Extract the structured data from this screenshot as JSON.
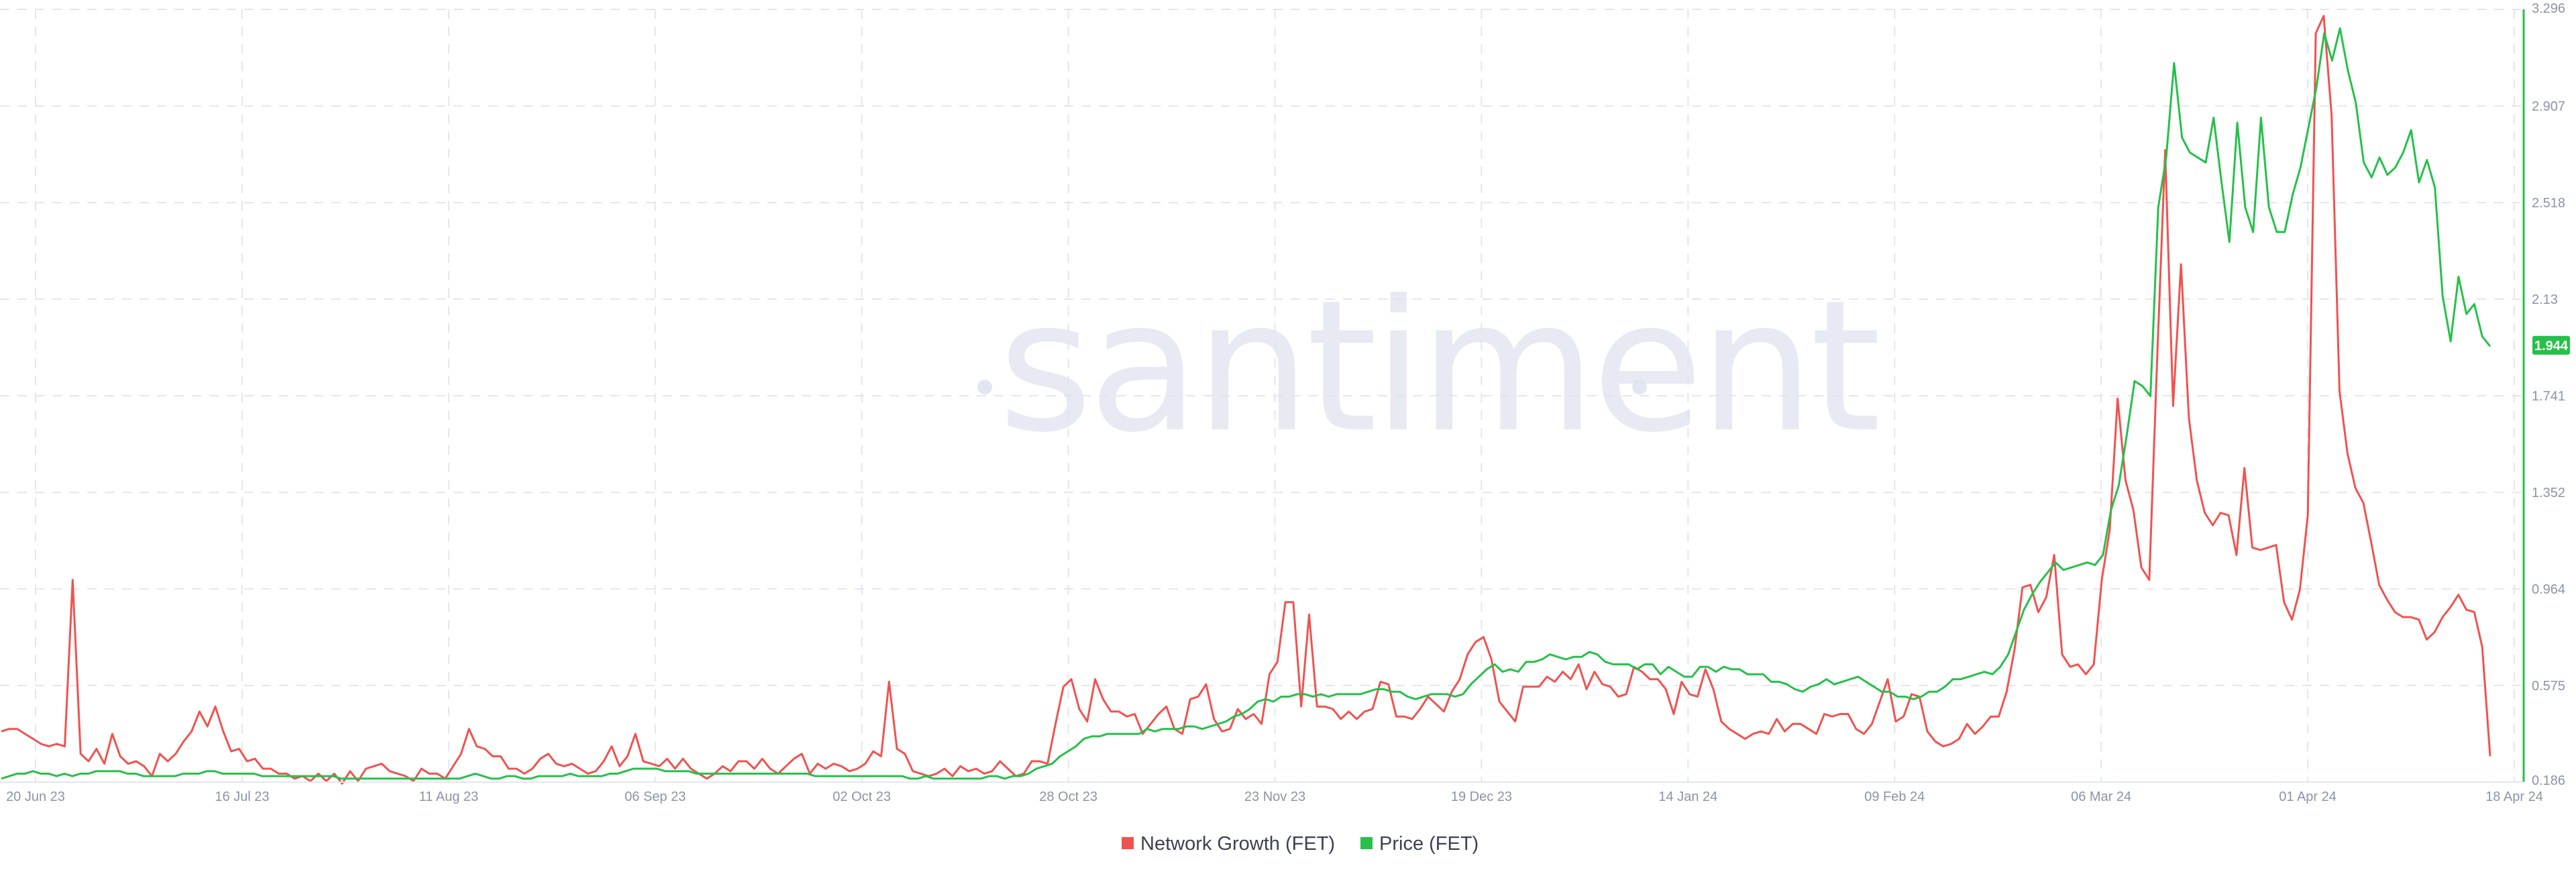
{
  "colors": {
    "network_growth": "#ef5350",
    "price": "#26c04a",
    "grid": "#e3e6ee",
    "tick": "#8b93a7",
    "watermark": "#dfe3ef"
  },
  "watermark": "santiment",
  "legend": {
    "network_growth": "Network Growth (FET)",
    "price": "Price (FET)"
  },
  "chart_data": {
    "type": "line",
    "x_tick_labels": [
      "20 Jun 23",
      "16 Jul 23",
      "11 Aug 23",
      "06 Sep 23",
      "02 Oct 23",
      "28 Oct 23",
      "23 Nov 23",
      "19 Dec 23",
      "14 Jan 24",
      "09 Feb 24",
      "06 Mar 24",
      "01 Apr 24",
      "18 Apr 24"
    ],
    "y_tick_labels": [
      "0.186",
      "0.575",
      "0.964",
      "1.352",
      "1.741",
      "2.13",
      "2.518",
      "2.907",
      "3.296"
    ],
    "ylim": [
      0.186,
      3.296
    ],
    "price_axis_side": "right",
    "current_price_label": "1.944",
    "grid": true,
    "legend_position": "bottom-center",
    "series": [
      {
        "name": "Network Growth (FET)",
        "color": "#ef5350",
        "y_axis": "hidden",
        "values": [
          0.39,
          0.4,
          0.4,
          0.38,
          0.36,
          0.34,
          0.33,
          0.34,
          0.33,
          1.0,
          0.3,
          0.27,
          0.32,
          0.26,
          0.38,
          0.29,
          0.26,
          0.27,
          0.25,
          0.21,
          0.3,
          0.27,
          0.3,
          0.35,
          0.39,
          0.47,
          0.41,
          0.49,
          0.39,
          0.31,
          0.32,
          0.27,
          0.28,
          0.24,
          0.24,
          0.22,
          0.22,
          0.2,
          0.21,
          0.19,
          0.22,
          0.19,
          0.22,
          0.18,
          0.23,
          0.19,
          0.24,
          0.25,
          0.26,
          0.23,
          0.22,
          0.21,
          0.19,
          0.24,
          0.22,
          0.22,
          0.2,
          0.25,
          0.3,
          0.4,
          0.33,
          0.32,
          0.29,
          0.29,
          0.24,
          0.24,
          0.22,
          0.24,
          0.28,
          0.3,
          0.26,
          0.25,
          0.26,
          0.24,
          0.22,
          0.23,
          0.27,
          0.33,
          0.25,
          0.29,
          0.38,
          0.27,
          0.26,
          0.25,
          0.28,
          0.24,
          0.28,
          0.24,
          0.22,
          0.2,
          0.22,
          0.25,
          0.23,
          0.27,
          0.27,
          0.24,
          0.28,
          0.24,
          0.22,
          0.25,
          0.28,
          0.3,
          0.22,
          0.26,
          0.24,
          0.26,
          0.25,
          0.23,
          0.24,
          0.26,
          0.31,
          0.29,
          0.59,
          0.32,
          0.3,
          0.23,
          0.22,
          0.21,
          0.22,
          0.24,
          0.21,
          0.25,
          0.23,
          0.24,
          0.22,
          0.23,
          0.27,
          0.24,
          0.21,
          0.22,
          0.27,
          0.27,
          0.26,
          0.42,
          0.57,
          0.6,
          0.48,
          0.43,
          0.6,
          0.52,
          0.47,
          0.47,
          0.45,
          0.46,
          0.38,
          0.42,
          0.46,
          0.49,
          0.4,
          0.38,
          0.52,
          0.53,
          0.58,
          0.44,
          0.39,
          0.4,
          0.48,
          0.44,
          0.46,
          0.42,
          0.62,
          0.67,
          0.91,
          0.91,
          0.49,
          0.86,
          0.49,
          0.49,
          0.48,
          0.44,
          0.47,
          0.44,
          0.47,
          0.48,
          0.59,
          0.58,
          0.45,
          0.45,
          0.44,
          0.48,
          0.53,
          0.5,
          0.47,
          0.55,
          0.6,
          0.7,
          0.75,
          0.77,
          0.68,
          0.51,
          0.47,
          0.43,
          0.57,
          0.57,
          0.57,
          0.61,
          0.59,
          0.63,
          0.6,
          0.66,
          0.56,
          0.63,
          0.58,
          0.57,
          0.53,
          0.54,
          0.65,
          0.63,
          0.6,
          0.6,
          0.56,
          0.46,
          0.59,
          0.54,
          0.53,
          0.64,
          0.56,
          0.43,
          0.4,
          0.38,
          0.36,
          0.38,
          0.39,
          0.38,
          0.44,
          0.39,
          0.42,
          0.42,
          0.4,
          0.38,
          0.46,
          0.45,
          0.46,
          0.46,
          0.4,
          0.38,
          0.42,
          0.51,
          0.6,
          0.43,
          0.45,
          0.54,
          0.53,
          0.39,
          0.35,
          0.33,
          0.34,
          0.36,
          0.42,
          0.38,
          0.41,
          0.45,
          0.45,
          0.55,
          0.72,
          0.97,
          0.98,
          0.87,
          0.93,
          1.1,
          0.7,
          0.65,
          0.66,
          0.62,
          0.66,
          1.0,
          1.2,
          1.73,
          1.4,
          1.28,
          1.05,
          1.0,
          1.9,
          2.73,
          1.7,
          2.27,
          1.65,
          1.4,
          1.27,
          1.22,
          1.27,
          1.26,
          1.1,
          1.45,
          1.13,
          1.12,
          1.13,
          1.14,
          0.91,
          0.84,
          0.96,
          1.26,
          3.2,
          3.27,
          2.87,
          1.76,
          1.51,
          1.37,
          1.31,
          1.15,
          0.98,
          0.92,
          0.87,
          0.85,
          0.85,
          0.84,
          0.76,
          0.79,
          0.85,
          0.89,
          0.94,
          0.88,
          0.87,
          0.73,
          0.29
        ]
      },
      {
        "name": "Price (FET)",
        "color": "#26c04a",
        "y_axis": "right",
        "values": [
          0.2,
          0.21,
          0.22,
          0.22,
          0.23,
          0.22,
          0.22,
          0.21,
          0.22,
          0.21,
          0.22,
          0.22,
          0.23,
          0.23,
          0.23,
          0.23,
          0.22,
          0.22,
          0.21,
          0.21,
          0.21,
          0.21,
          0.21,
          0.22,
          0.22,
          0.22,
          0.23,
          0.23,
          0.22,
          0.22,
          0.22,
          0.22,
          0.22,
          0.21,
          0.21,
          0.21,
          0.21,
          0.21,
          0.21,
          0.21,
          0.21,
          0.21,
          0.21,
          0.2,
          0.2,
          0.2,
          0.2,
          0.2,
          0.2,
          0.2,
          0.2,
          0.2,
          0.2,
          0.2,
          0.2,
          0.2,
          0.2,
          0.2,
          0.2,
          0.21,
          0.22,
          0.21,
          0.2,
          0.2,
          0.21,
          0.21,
          0.2,
          0.2,
          0.21,
          0.21,
          0.21,
          0.21,
          0.22,
          0.21,
          0.21,
          0.21,
          0.21,
          0.22,
          0.22,
          0.23,
          0.24,
          0.24,
          0.24,
          0.24,
          0.23,
          0.23,
          0.23,
          0.23,
          0.22,
          0.22,
          0.22,
          0.22,
          0.22,
          0.22,
          0.22,
          0.22,
          0.22,
          0.22,
          0.22,
          0.22,
          0.22,
          0.22,
          0.22,
          0.21,
          0.21,
          0.21,
          0.21,
          0.21,
          0.21,
          0.21,
          0.21,
          0.21,
          0.21,
          0.21,
          0.21,
          0.2,
          0.2,
          0.21,
          0.2,
          0.2,
          0.2,
          0.2,
          0.2,
          0.2,
          0.2,
          0.21,
          0.21,
          0.2,
          0.21,
          0.21,
          0.22,
          0.24,
          0.25,
          0.26,
          0.29,
          0.31,
          0.33,
          0.36,
          0.37,
          0.37,
          0.38,
          0.38,
          0.38,
          0.38,
          0.38,
          0.4,
          0.39,
          0.4,
          0.4,
          0.4,
          0.41,
          0.41,
          0.4,
          0.41,
          0.42,
          0.43,
          0.45,
          0.46,
          0.48,
          0.51,
          0.52,
          0.51,
          0.53,
          0.53,
          0.54,
          0.54,
          0.53,
          0.54,
          0.53,
          0.54,
          0.54,
          0.54,
          0.54,
          0.55,
          0.56,
          0.56,
          0.55,
          0.55,
          0.53,
          0.52,
          0.53,
          0.54,
          0.54,
          0.54,
          0.53,
          0.54,
          0.58,
          0.61,
          0.64,
          0.66,
          0.63,
          0.64,
          0.63,
          0.67,
          0.67,
          0.68,
          0.7,
          0.69,
          0.68,
          0.69,
          0.69,
          0.71,
          0.7,
          0.67,
          0.66,
          0.66,
          0.66,
          0.64,
          0.66,
          0.66,
          0.62,
          0.65,
          0.63,
          0.61,
          0.61,
          0.65,
          0.65,
          0.63,
          0.65,
          0.64,
          0.64,
          0.62,
          0.62,
          0.62,
          0.59,
          0.59,
          0.58,
          0.56,
          0.55,
          0.57,
          0.58,
          0.6,
          0.58,
          0.59,
          0.6,
          0.61,
          0.59,
          0.57,
          0.55,
          0.55,
          0.53,
          0.53,
          0.52,
          0.53,
          0.55,
          0.55,
          0.57,
          0.6,
          0.6,
          0.61,
          0.62,
          0.63,
          0.62,
          0.65,
          0.7,
          0.79,
          0.88,
          0.94,
          0.99,
          1.03,
          1.07,
          1.04,
          1.05,
          1.06,
          1.07,
          1.06,
          1.1,
          1.28,
          1.38,
          1.58,
          1.8,
          1.78,
          1.74,
          2.5,
          2.7,
          3.08,
          2.78,
          2.72,
          2.7,
          2.68,
          2.86,
          2.6,
          2.36,
          2.84,
          2.5,
          2.4,
          2.86,
          2.5,
          2.4,
          2.4,
          2.55,
          2.66,
          2.82,
          2.98,
          3.2,
          3.09,
          3.22,
          3.05,
          2.92,
          2.68,
          2.62,
          2.7,
          2.63,
          2.66,
          2.72,
          2.81,
          2.6,
          2.69,
          2.58,
          2.14,
          1.96,
          2.22,
          2.07,
          2.11,
          1.98,
          1.94
        ]
      }
    ]
  }
}
